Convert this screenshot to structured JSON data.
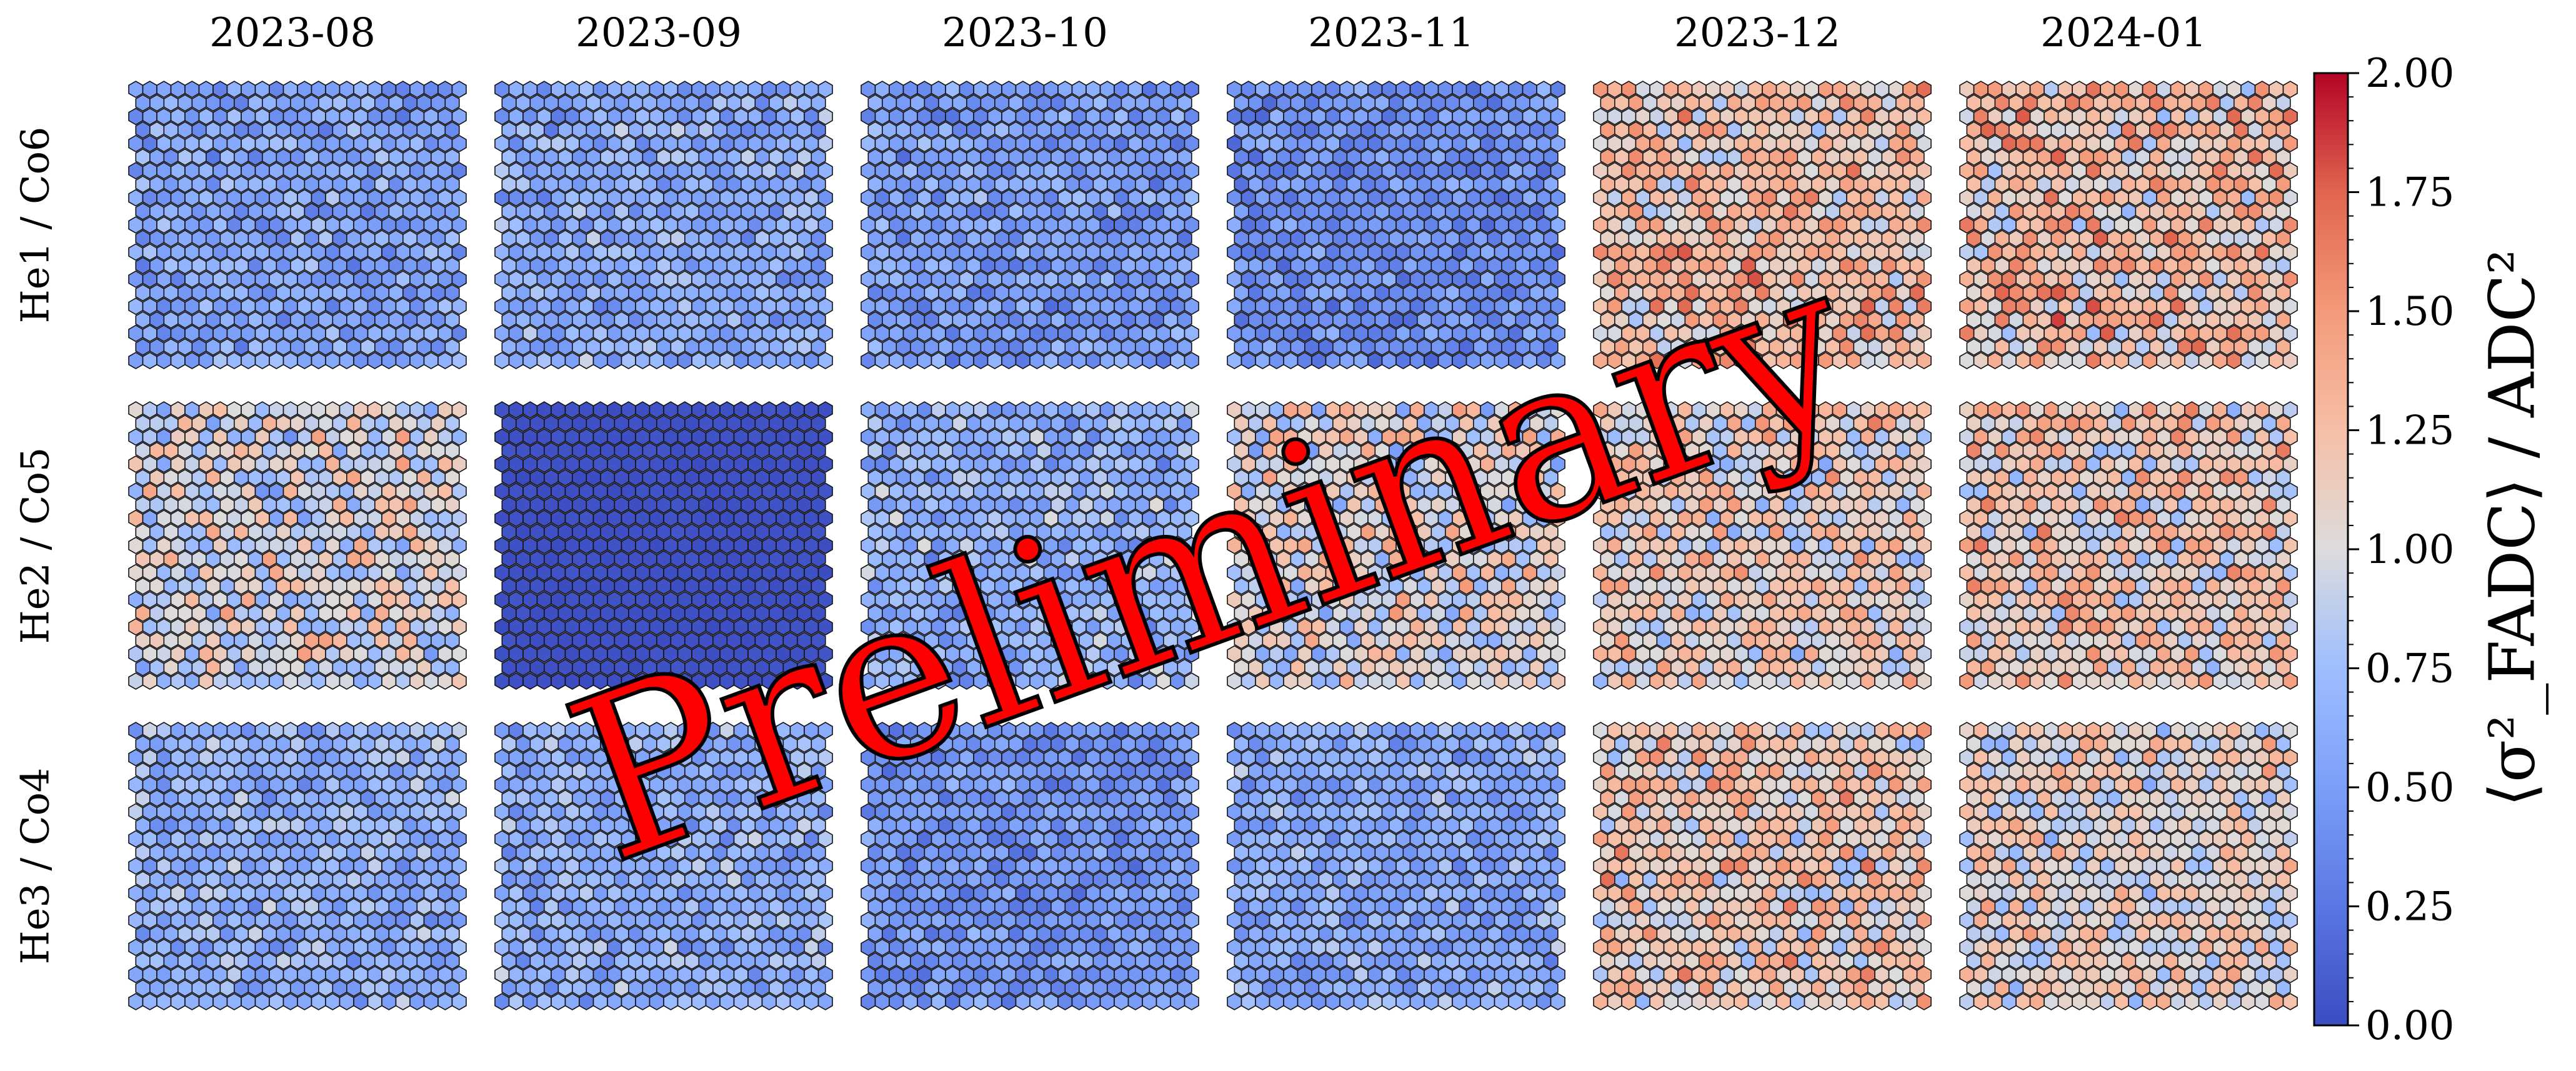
{
  "chart_data": {
    "type": "heatmap",
    "layout": "grid of hexagonal pixel camera maps",
    "columns": [
      "2023-08",
      "2023-09",
      "2023-10",
      "2023-11",
      "2023-12",
      "2024-01"
    ],
    "rows": [
      "He1 / Co6",
      "He2 / Co5",
      "He3 / Co4"
    ],
    "colorbar": {
      "label": "⟨σ²_FADC⟩ / ADC²",
      "colormap": "coolwarm",
      "range": [
        0.0,
        2.0
      ],
      "ticks": [
        "0.00",
        "0.25",
        "0.50",
        "0.75",
        "1.00",
        "1.25",
        "1.50",
        "1.75",
        "2.00"
      ]
    },
    "panels": [
      {
        "row": "He1 / Co6",
        "column": "2023-08",
        "mean": 0.55,
        "spread": 0.2
      },
      {
        "row": "He1 / Co6",
        "column": "2023-09",
        "mean": 0.6,
        "spread": 0.22
      },
      {
        "row": "He1 / Co6",
        "column": "2023-10",
        "mean": 0.5,
        "spread": 0.2
      },
      {
        "row": "He1 / Co6",
        "column": "2023-11",
        "mean": 0.42,
        "spread": 0.18
      },
      {
        "row": "He1 / Co6",
        "column": "2023-12",
        "mean": 1.25,
        "spread": 0.35
      },
      {
        "row": "He1 / Co6",
        "column": "2024-01",
        "mean": 1.25,
        "spread": 0.38
      },
      {
        "row": "He2 / Co5",
        "column": "2023-08",
        "mean": 0.95,
        "spread": 0.35
      },
      {
        "row": "He2 / Co5",
        "column": "2023-09",
        "mean": 0.03,
        "spread": 0.02
      },
      {
        "row": "He2 / Co5",
        "column": "2023-10",
        "mean": 0.65,
        "spread": 0.25
      },
      {
        "row": "He2 / Co5",
        "column": "2023-11",
        "mean": 1.0,
        "spread": 0.35
      },
      {
        "row": "He2 / Co5",
        "column": "2023-12",
        "mean": 1.1,
        "spread": 0.35
      },
      {
        "row": "He2 / Co5",
        "column": "2024-01",
        "mean": 1.15,
        "spread": 0.35
      },
      {
        "row": "He3 / Co4",
        "column": "2023-08",
        "mean": 0.65,
        "spread": 0.22
      },
      {
        "row": "He3 / Co4",
        "column": "2023-09",
        "mean": 0.62,
        "spread": 0.22
      },
      {
        "row": "He3 / Co4",
        "column": "2023-10",
        "mean": 0.45,
        "spread": 0.18
      },
      {
        "row": "He3 / Co4",
        "column": "2023-11",
        "mean": 0.6,
        "spread": 0.22
      },
      {
        "row": "He3 / Co4",
        "column": "2023-12",
        "mean": 1.15,
        "spread": 0.35
      },
      {
        "row": "He3 / Co4",
        "column": "2024-01",
        "mean": 1.05,
        "spread": 0.32
      }
    ]
  },
  "watermark": "Preliminary"
}
